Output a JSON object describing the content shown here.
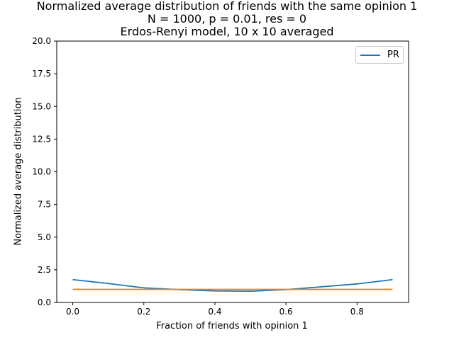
{
  "chart_data": {
    "type": "line",
    "title_lines": [
      "Normalized average distribution of friends with the same opinion 1",
      "N = 1000, p = 0.01, res = 0",
      "Erdos-Renyi model, 10 x 10 averaged"
    ],
    "xlabel": "Fraction of friends with opinion 1",
    "ylabel": "Normalized average distribution",
    "xlim": [
      -0.045,
      0.945
    ],
    "ylim": [
      0,
      20
    ],
    "xticks": [
      0.0,
      0.2,
      0.4,
      0.6,
      0.8
    ],
    "xtick_labels": [
      "0.0",
      "0.2",
      "0.4",
      "0.6",
      "0.8"
    ],
    "yticks": [
      0,
      2.5,
      5,
      7.5,
      10,
      12.5,
      15,
      17.5,
      20
    ],
    "ytick_labels": [
      "0.0",
      "2.5",
      "5.0",
      "7.5",
      "10.0",
      "12.5",
      "15.0",
      "17.5",
      "20.0"
    ],
    "grid": false,
    "legend": {
      "placement": "top-right",
      "entries": [
        "PR"
      ]
    },
    "series": [
      {
        "name": "PR",
        "color": "#1f77b4",
        "x": [
          0.0,
          0.1,
          0.2,
          0.3,
          0.4,
          0.5,
          0.6,
          0.7,
          0.8,
          0.9
        ],
        "y": [
          1.75,
          1.45,
          1.12,
          0.98,
          0.88,
          0.86,
          0.98,
          1.2,
          1.42,
          1.75
        ]
      },
      {
        "color": "#ff7f0e",
        "x": [
          0.0,
          0.1,
          0.2,
          0.3,
          0.4,
          0.5,
          0.6,
          0.7,
          0.8,
          0.9
        ],
        "y": [
          1.0,
          1.0,
          1.0,
          1.0,
          1.0,
          1.0,
          1.0,
          1.0,
          1.0,
          1.0
        ]
      }
    ]
  }
}
